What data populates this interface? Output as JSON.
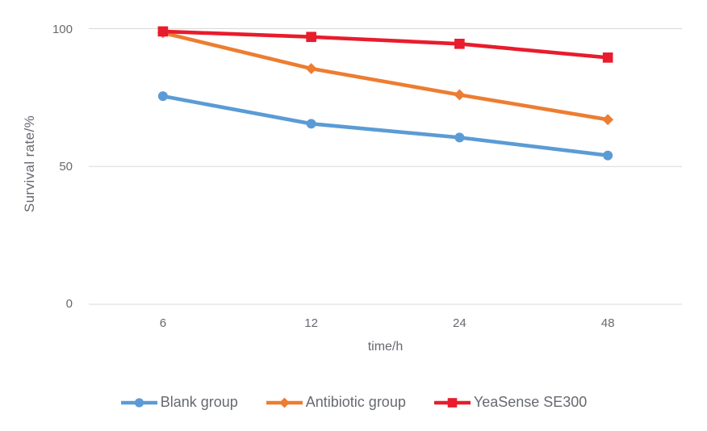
{
  "chart_data": {
    "type": "line",
    "title": "",
    "xlabel": "time/h",
    "ylabel": "Survival rate/%",
    "categories": [
      "6",
      "12",
      "24",
      "48"
    ],
    "x_values": [
      6,
      12,
      24,
      48
    ],
    "ylim": [
      0,
      100
    ],
    "yticks": [
      0,
      50,
      100
    ],
    "ytick_labels": [
      "100",
      "50",
      "0"
    ],
    "grid": true,
    "legend_position": "bottom",
    "series": [
      {
        "name": "Blank group",
        "color": "#5b9bd5",
        "marker": "circle",
        "values": [
          75.5,
          65.5,
          60.5,
          54
        ]
      },
      {
        "name": "Antibiotic group",
        "color": "#ed7d31",
        "marker": "diamond",
        "values": [
          98.5,
          85.5,
          76,
          67
        ]
      },
      {
        "name": "YeaSense SE300",
        "color": "#e81c2c",
        "marker": "square",
        "values": [
          99,
          97,
          94.5,
          89.5
        ]
      }
    ],
    "colors": {
      "grid": "#d9d9d9",
      "axis": "#d9d9d9",
      "text": "#66696f"
    }
  }
}
